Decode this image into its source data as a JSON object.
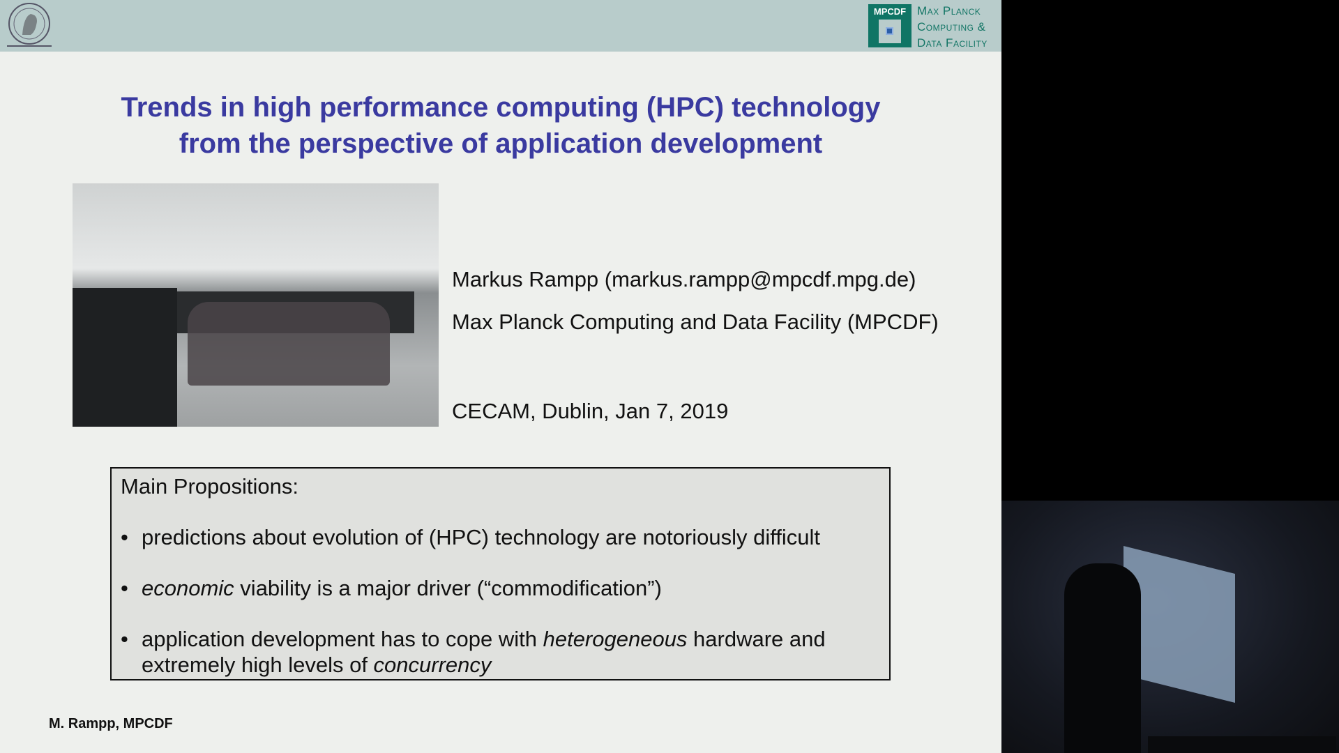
{
  "header": {
    "logo_left": "Max Planck Society seal",
    "mpcdf_badge": "MPCDF",
    "mpcdf_name": [
      "Max Planck",
      "Computing &",
      "Data Facility"
    ]
  },
  "title": [
    "Trends in high performance computing (HPC) technology",
    "from the perspective of application development"
  ],
  "author": "Markus Rampp (markus.rampp@mpcdf.mpg.de)",
  "affiliation": "Max Planck Computing and Data Facility (MPCDF)",
  "event": "CECAM, Dublin, Jan 7, 2019",
  "propositions": {
    "heading": "Main Propositions:",
    "items": [
      {
        "parts": [
          {
            "t": "predictions about evolution of (HPC) technology are notoriously difficult",
            "i": false
          }
        ]
      },
      {
        "parts": [
          {
            "t": "economic",
            "i": true
          },
          {
            "t": " viability is a major driver (“commodification”)",
            "i": false
          }
        ]
      },
      {
        "parts": [
          {
            "t": "application development has to cope with ",
            "i": false
          },
          {
            "t": "heterogeneous",
            "i": true
          },
          {
            "t": " hardware and extremely high levels of ",
            "i": false
          },
          {
            "t": "concurrency",
            "i": true
          }
        ]
      }
    ]
  },
  "footer": "M. Rampp, MPCDF",
  "colors": {
    "title": "#3a3aa0",
    "header": "#b8cccb",
    "brand": "#0f7565"
  }
}
